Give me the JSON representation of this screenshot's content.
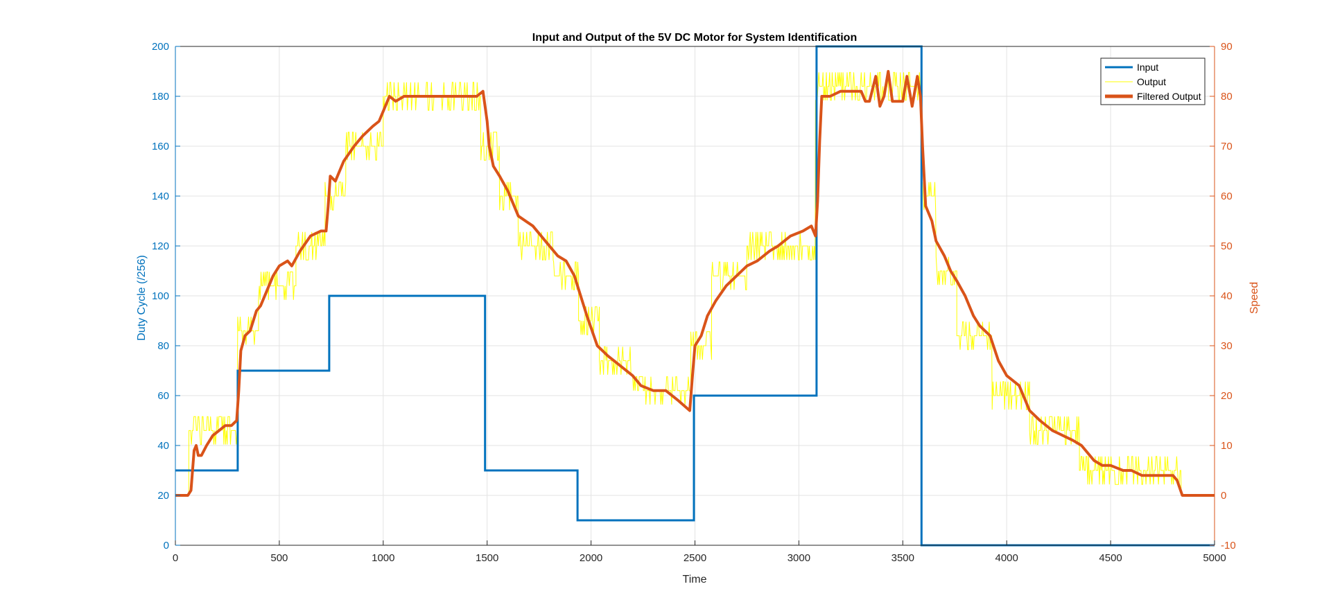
{
  "chart_data": {
    "type": "line",
    "title": "Input and Output of the 5V DC Motor for System Identification",
    "xlabel": "Time",
    "ylabel_left": "Duty Cycle (/256)",
    "ylabel_right": "Speed",
    "xlim": [
      0,
      5000
    ],
    "ylim_left": [
      0,
      200
    ],
    "ylim_right": [
      -10,
      90
    ],
    "x_ticks": [
      "0",
      "500",
      "1000",
      "1500",
      "2000",
      "2500",
      "3000",
      "3500",
      "4000",
      "4500",
      "5000"
    ],
    "y_left_ticks": [
      "0",
      "20",
      "40",
      "60",
      "80",
      "100",
      "120",
      "140",
      "160",
      "180",
      "200"
    ],
    "y_right_ticks": [
      "-10",
      "0",
      "10",
      "20",
      "30",
      "40",
      "50",
      "60",
      "70",
      "80",
      "90"
    ],
    "grid": true,
    "legend_position": "top-right",
    "colors": {
      "input": "#0072BD",
      "output": "#FFFF00",
      "filtered": "#D95319",
      "axis_left": "#0072BD",
      "axis_right": "#D95319"
    },
    "series": [
      {
        "name": "Input",
        "axis": "left",
        "color": "#0072BD",
        "steps": [
          [
            0,
            30
          ],
          [
            300,
            30
          ],
          [
            300,
            70
          ],
          [
            740,
            70
          ],
          [
            740,
            100
          ],
          [
            1490,
            100
          ],
          [
            1490,
            30
          ],
          [
            1935,
            30
          ],
          [
            1935,
            10
          ],
          [
            2495,
            10
          ],
          [
            2495,
            60
          ],
          [
            3085,
            60
          ],
          [
            3085,
            200
          ],
          [
            3590,
            200
          ],
          [
            3590,
            0
          ],
          [
            5000,
            0
          ]
        ]
      },
      {
        "name": "Output",
        "axis": "right",
        "color": "#FFFF00",
        "levels": [
          [
            0,
            65,
            0
          ],
          [
            65,
            300,
            13
          ],
          [
            300,
            400,
            33
          ],
          [
            400,
            580,
            42
          ],
          [
            580,
            720,
            50
          ],
          [
            720,
            820,
            60
          ],
          [
            820,
            1000,
            70
          ],
          [
            1000,
            1470,
            80
          ],
          [
            1470,
            1560,
            70
          ],
          [
            1560,
            1650,
            60
          ],
          [
            1650,
            1820,
            50
          ],
          [
            1820,
            1940,
            44
          ],
          [
            1940,
            2040,
            35
          ],
          [
            2040,
            2200,
            27
          ],
          [
            2200,
            2480,
            21
          ],
          [
            2480,
            2580,
            30
          ],
          [
            2580,
            2750,
            44
          ],
          [
            2750,
            3080,
            50
          ],
          [
            3080,
            3590,
            82
          ],
          [
            3590,
            3660,
            60
          ],
          [
            3660,
            3760,
            45
          ],
          [
            3760,
            3930,
            32
          ],
          [
            3930,
            4110,
            20
          ],
          [
            4110,
            4350,
            13
          ],
          [
            4350,
            4840,
            5
          ],
          [
            4840,
            5000,
            0
          ]
        ]
      },
      {
        "name": "Filtered Output",
        "axis": "right",
        "color": "#D95319",
        "points": [
          [
            0,
            0
          ],
          [
            60,
            0
          ],
          [
            75,
            1
          ],
          [
            90,
            9
          ],
          [
            100,
            10
          ],
          [
            110,
            8
          ],
          [
            125,
            8
          ],
          [
            150,
            10
          ],
          [
            180,
            12
          ],
          [
            210,
            13
          ],
          [
            240,
            14
          ],
          [
            270,
            14
          ],
          [
            295,
            15
          ],
          [
            305,
            21
          ],
          [
            315,
            29
          ],
          [
            335,
            32
          ],
          [
            360,
            33
          ],
          [
            390,
            37
          ],
          [
            410,
            38
          ],
          [
            440,
            41
          ],
          [
            470,
            44
          ],
          [
            500,
            46
          ],
          [
            540,
            47
          ],
          [
            560,
            46
          ],
          [
            600,
            49
          ],
          [
            650,
            52
          ],
          [
            700,
            53
          ],
          [
            725,
            53
          ],
          [
            735,
            58
          ],
          [
            745,
            64
          ],
          [
            770,
            63
          ],
          [
            810,
            67
          ],
          [
            860,
            70
          ],
          [
            900,
            72
          ],
          [
            950,
            74
          ],
          [
            980,
            75
          ],
          [
            1000,
            77
          ],
          [
            1010,
            78
          ],
          [
            1030,
            80
          ],
          [
            1060,
            79
          ],
          [
            1100,
            80
          ],
          [
            1200,
            80
          ],
          [
            1300,
            80
          ],
          [
            1400,
            80
          ],
          [
            1450,
            80
          ],
          [
            1480,
            81
          ],
          [
            1500,
            75
          ],
          [
            1510,
            70
          ],
          [
            1530,
            66
          ],
          [
            1560,
            64
          ],
          [
            1600,
            61
          ],
          [
            1650,
            56
          ],
          [
            1720,
            54
          ],
          [
            1780,
            51
          ],
          [
            1840,
            48
          ],
          [
            1880,
            47
          ],
          [
            1920,
            44
          ],
          [
            1950,
            40
          ],
          [
            1980,
            36
          ],
          [
            2030,
            30
          ],
          [
            2080,
            28
          ],
          [
            2140,
            26
          ],
          [
            2200,
            24
          ],
          [
            2240,
            22
          ],
          [
            2300,
            21
          ],
          [
            2360,
            21
          ],
          [
            2420,
            19
          ],
          [
            2475,
            17
          ],
          [
            2490,
            25
          ],
          [
            2500,
            30
          ],
          [
            2530,
            32
          ],
          [
            2560,
            36
          ],
          [
            2600,
            39
          ],
          [
            2650,
            42
          ],
          [
            2700,
            44
          ],
          [
            2750,
            46
          ],
          [
            2800,
            47
          ],
          [
            2860,
            49
          ],
          [
            2900,
            50
          ],
          [
            2960,
            52
          ],
          [
            3020,
            53
          ],
          [
            3060,
            54
          ],
          [
            3080,
            52
          ],
          [
            3090,
            59
          ],
          [
            3100,
            71
          ],
          [
            3110,
            80
          ],
          [
            3150,
            80
          ],
          [
            3200,
            81
          ],
          [
            3250,
            81
          ],
          [
            3300,
            81
          ],
          [
            3320,
            79
          ],
          [
            3340,
            79
          ],
          [
            3370,
            84
          ],
          [
            3390,
            78
          ],
          [
            3410,
            80
          ],
          [
            3430,
            85
          ],
          [
            3450,
            79
          ],
          [
            3500,
            79
          ],
          [
            3520,
            84
          ],
          [
            3545,
            78
          ],
          [
            3570,
            84
          ],
          [
            3585,
            80
          ],
          [
            3595,
            70
          ],
          [
            3610,
            58
          ],
          [
            3640,
            55
          ],
          [
            3660,
            51
          ],
          [
            3700,
            48
          ],
          [
            3730,
            45
          ],
          [
            3760,
            43
          ],
          [
            3800,
            40
          ],
          [
            3840,
            36
          ],
          [
            3870,
            34
          ],
          [
            3920,
            32
          ],
          [
            3960,
            27
          ],
          [
            4000,
            24
          ],
          [
            4060,
            22
          ],
          [
            4110,
            17
          ],
          [
            4160,
            15
          ],
          [
            4220,
            13
          ],
          [
            4270,
            12
          ],
          [
            4320,
            11
          ],
          [
            4360,
            10
          ],
          [
            4400,
            8
          ],
          [
            4420,
            7
          ],
          [
            4460,
            6
          ],
          [
            4500,
            6
          ],
          [
            4560,
            5
          ],
          [
            4600,
            5
          ],
          [
            4650,
            4
          ],
          [
            4700,
            4
          ],
          [
            4760,
            4
          ],
          [
            4800,
            4
          ],
          [
            4820,
            3
          ],
          [
            4845,
            0
          ],
          [
            5000,
            0
          ]
        ]
      }
    ]
  }
}
